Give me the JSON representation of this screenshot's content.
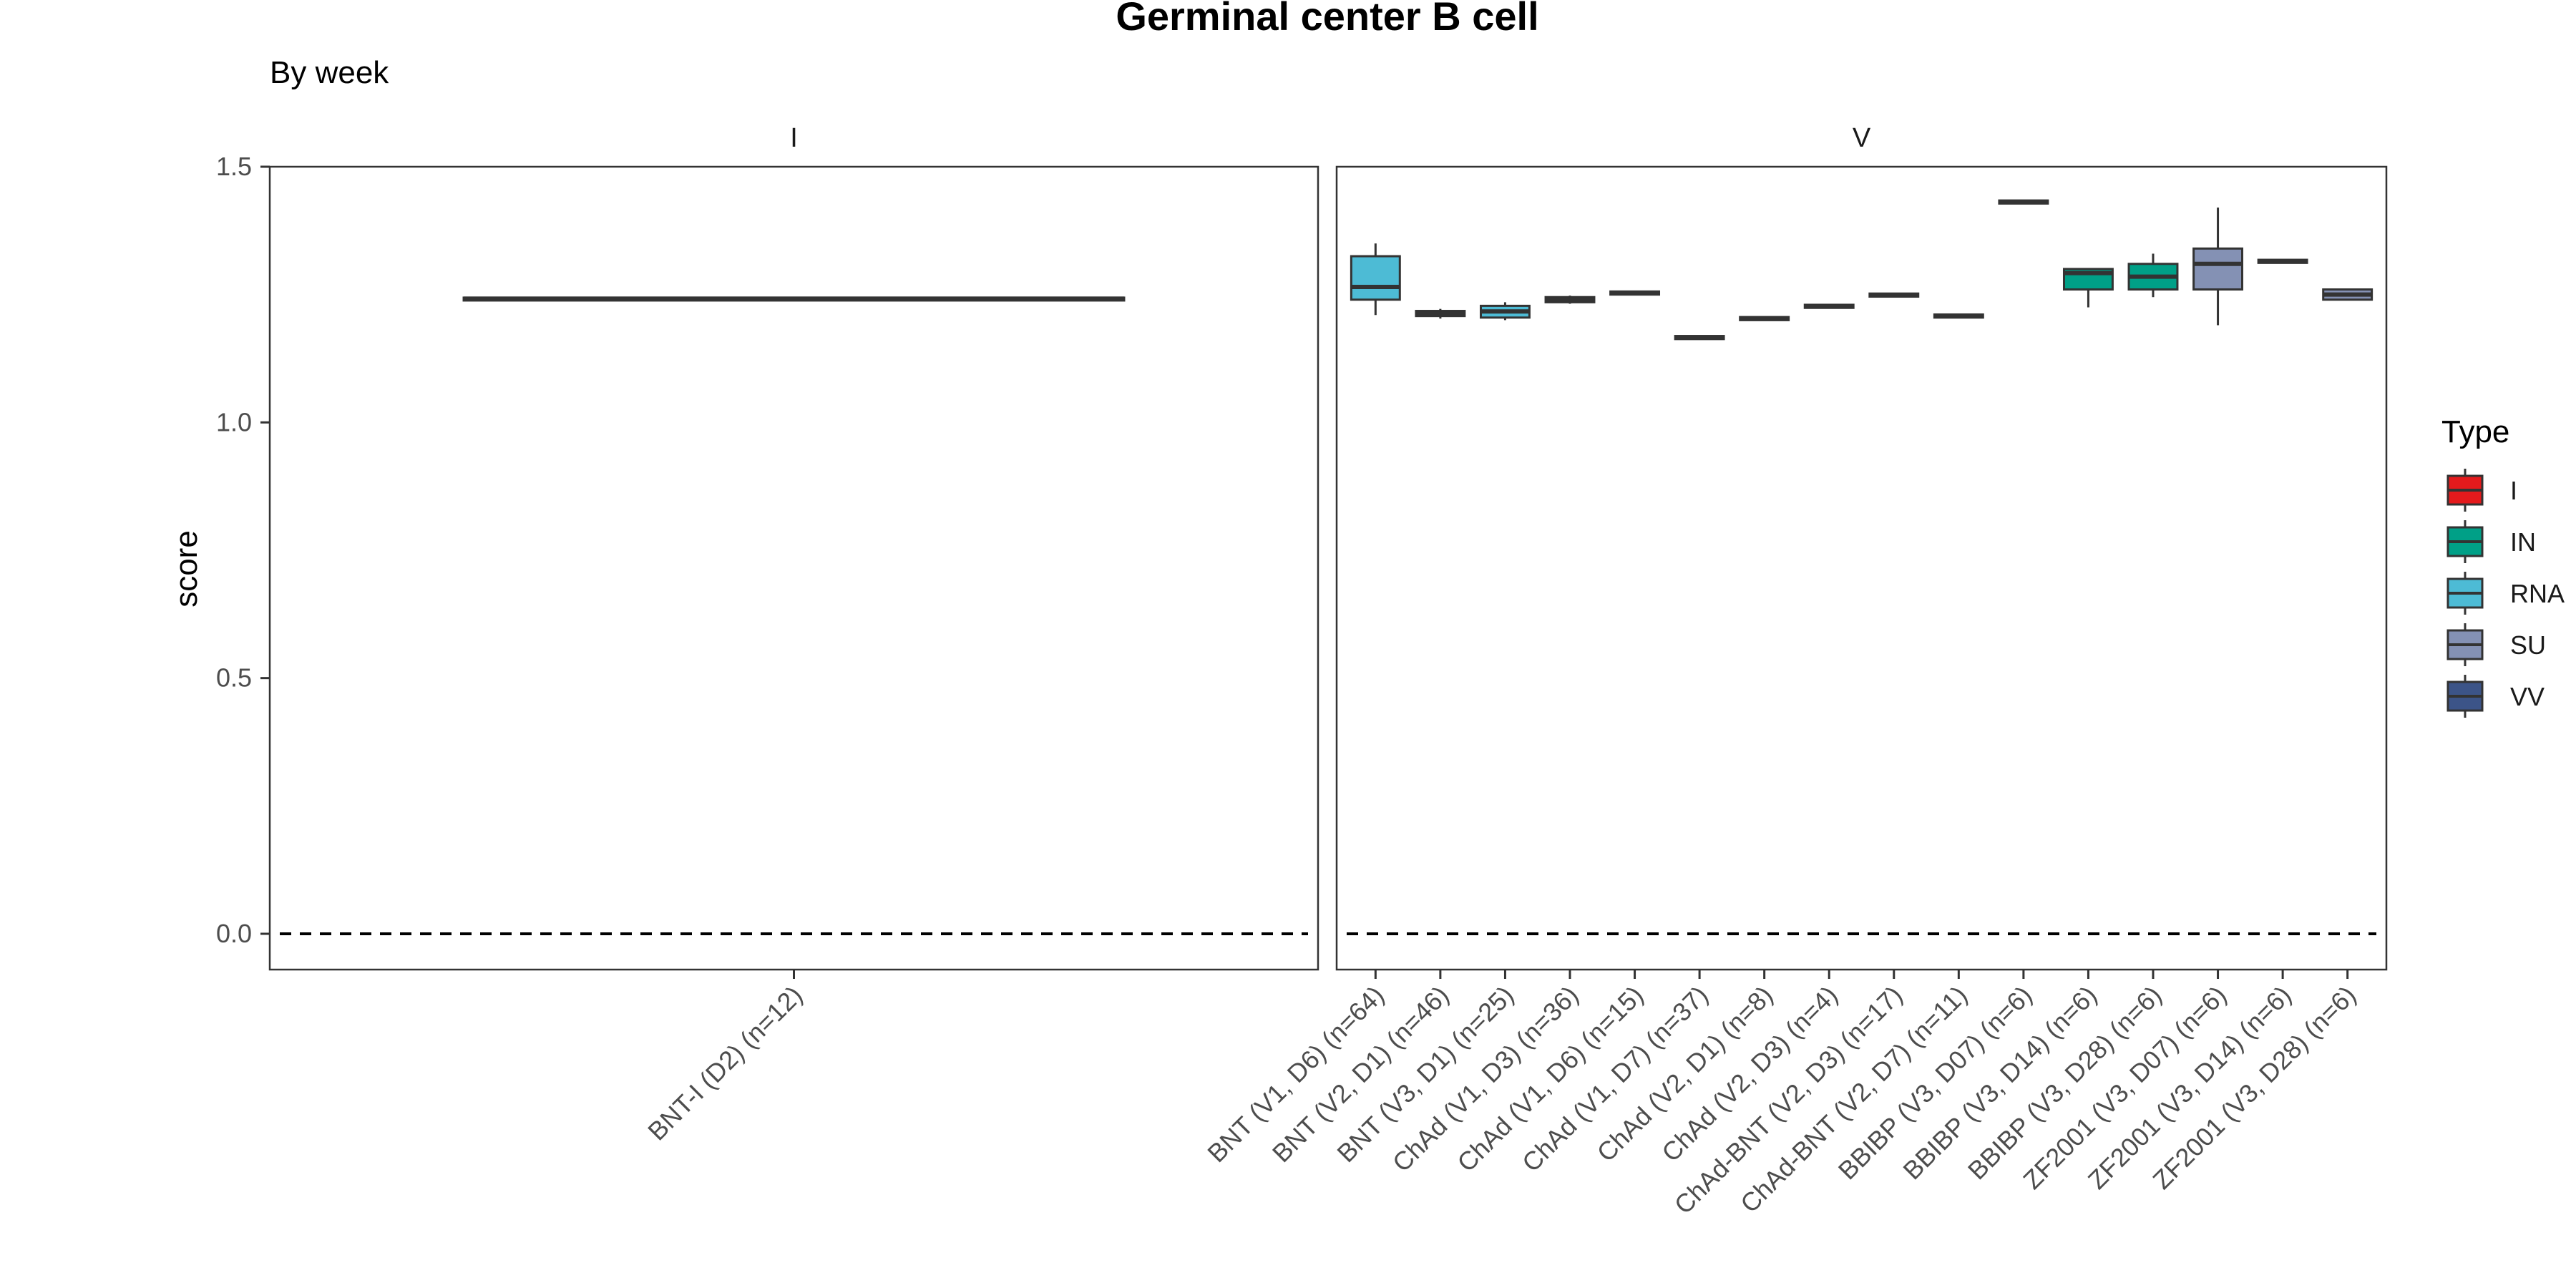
{
  "chart_data": {
    "type": "boxplot",
    "title": "Germinal center B cell",
    "subtitle": "By week",
    "ylabel": "score",
    "ylim": [
      -0.07,
      1.5
    ],
    "yticks": [
      0.0,
      0.5,
      1.0,
      1.5
    ],
    "ytick_labels": [
      "0.0",
      "0.5",
      "1.0",
      "1.5"
    ],
    "reference_line": 0,
    "legend": {
      "title": "Type",
      "position": "right",
      "items": [
        {
          "label": "I",
          "color": "#e41a1c"
        },
        {
          "label": "IN",
          "color": "#00a087"
        },
        {
          "label": "RNA",
          "color": "#4dbbd5"
        },
        {
          "label": "SU",
          "color": "#8491b4"
        },
        {
          "label": "VV",
          "color": "#3c5488"
        }
      ]
    },
    "facets": [
      {
        "strip": "I",
        "categories": [
          {
            "label": "BNT-I (D2) (n=12)",
            "type": "I",
            "q1": 1.24,
            "median": 1.242,
            "q3": 1.244,
            "lower": 1.24,
            "upper": 1.244
          }
        ]
      },
      {
        "strip": "V",
        "categories": [
          {
            "label": "BNT (V1, D6) (n=64)",
            "type": "RNA",
            "q1": 1.24,
            "median": 1.265,
            "q3": 1.325,
            "lower": 1.21,
            "upper": 1.35
          },
          {
            "label": "BNT (V2, D1) (n=46)",
            "type": "RNA",
            "q1": 1.208,
            "median": 1.213,
            "q3": 1.218,
            "lower": 1.203,
            "upper": 1.222
          },
          {
            "label": "BNT (V3, D1) (n=25)",
            "type": "RNA",
            "q1": 1.205,
            "median": 1.217,
            "q3": 1.228,
            "lower": 1.2,
            "upper": 1.235
          },
          {
            "label": "ChAd (V1, D3) (n=36)",
            "type": "VV",
            "q1": 1.235,
            "median": 1.24,
            "q3": 1.245,
            "lower": 1.232,
            "upper": 1.248
          },
          {
            "label": "ChAd (V1, D6) (n=15)",
            "type": "VV",
            "q1": 1.25,
            "median": 1.253,
            "q3": 1.256,
            "lower": 1.25,
            "upper": 1.256
          },
          {
            "label": "ChAd (V1, D7) (n=37)",
            "type": "VV",
            "q1": 1.163,
            "median": 1.166,
            "q3": 1.169,
            "lower": 1.163,
            "upper": 1.169
          },
          {
            "label": "ChAd (V2, D1) (n=8)",
            "type": "VV",
            "q1": 1.2,
            "median": 1.203,
            "q3": 1.206,
            "lower": 1.2,
            "upper": 1.206
          },
          {
            "label": "ChAd (V2, D3) (n=4)",
            "type": "VV",
            "q1": 1.224,
            "median": 1.227,
            "q3": 1.23,
            "lower": 1.224,
            "upper": 1.23
          },
          {
            "label": "ChAd-BNT (V2, D3) (n=17)",
            "type": "VV",
            "q1": 1.246,
            "median": 1.249,
            "q3": 1.252,
            "lower": 1.246,
            "upper": 1.252
          },
          {
            "label": "ChAd-BNT (V2, D7) (n=11)",
            "type": "VV",
            "q1": 1.205,
            "median": 1.208,
            "q3": 1.211,
            "lower": 1.205,
            "upper": 1.211
          },
          {
            "label": "BBIBP (V3, D07) (n=6)",
            "type": "IN",
            "q1": 1.428,
            "median": 1.431,
            "q3": 1.434,
            "lower": 1.428,
            "upper": 1.434
          },
          {
            "label": "BBIBP (V3, D14) (n=6)",
            "type": "IN",
            "q1": 1.26,
            "median": 1.292,
            "q3": 1.3,
            "lower": 1.225,
            "upper": 1.3
          },
          {
            "label": "BBIBP (V3, D28) (n=6)",
            "type": "IN",
            "q1": 1.26,
            "median": 1.285,
            "q3": 1.31,
            "lower": 1.245,
            "upper": 1.33
          },
          {
            "label": "ZF2001 (V3, D07) (n=6)",
            "type": "SU",
            "q1": 1.26,
            "median": 1.31,
            "q3": 1.34,
            "lower": 1.19,
            "upper": 1.42
          },
          {
            "label": "ZF2001 (V3, D14) (n=6)",
            "type": "SU",
            "q1": 1.312,
            "median": 1.315,
            "q3": 1.318,
            "lower": 1.312,
            "upper": 1.318
          },
          {
            "label": "ZF2001 (V3, D28) (n=6)",
            "type": "SU",
            "q1": 1.24,
            "median": 1.25,
            "q3": 1.26,
            "lower": 1.24,
            "upper": 1.26
          }
        ]
      }
    ]
  }
}
